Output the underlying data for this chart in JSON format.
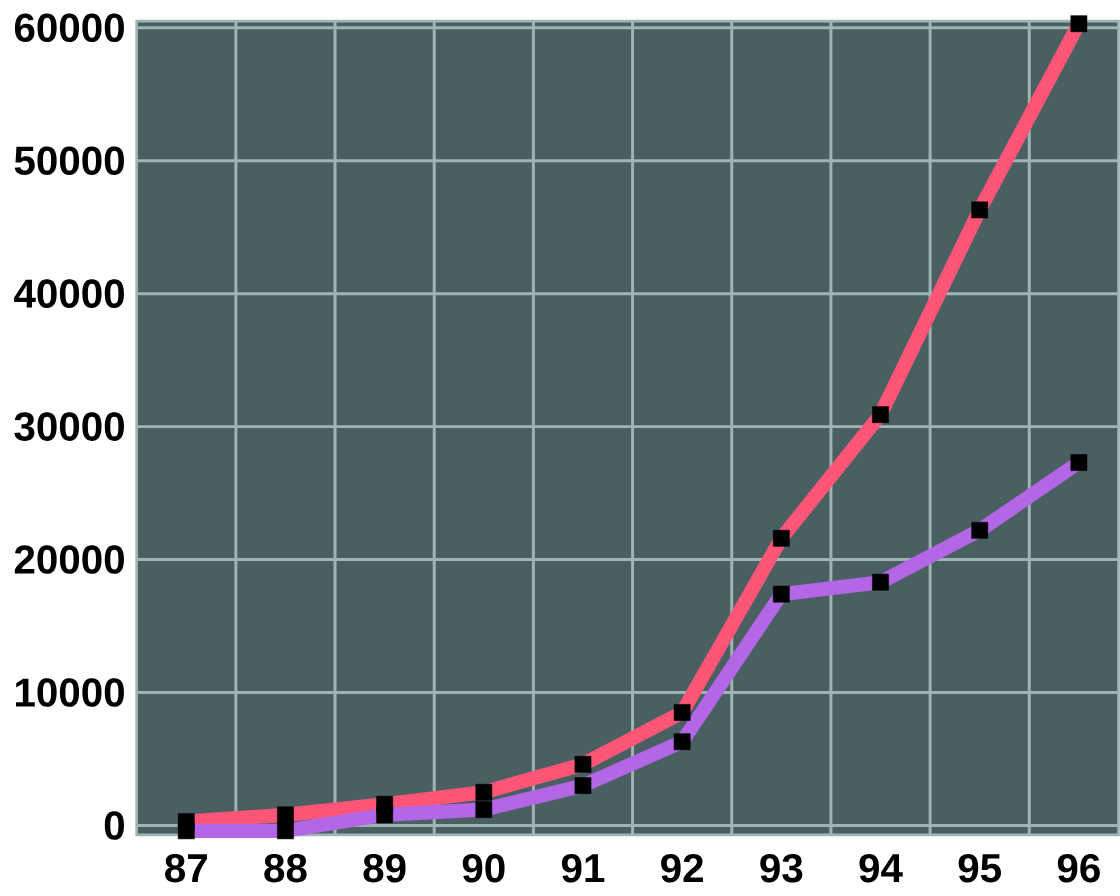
{
  "chart_data": {
    "type": "line",
    "categories": [
      "87",
      "88",
      "89",
      "90",
      "91",
      "92",
      "93",
      "94",
      "95",
      "96"
    ],
    "series": [
      {
        "color": "#ff5577",
        "values": [
          300,
          800,
          1600,
          2500,
          4600,
          8500,
          21600,
          30900,
          46300,
          60300
        ]
      },
      {
        "color": "#b366e6",
        "values": [
          -400,
          -400,
          800,
          1200,
          3000,
          6300,
          17400,
          18300,
          22200,
          27300
        ]
      }
    ],
    "ylim": [
      -700,
      60500
    ],
    "yticks": [
      0,
      10000,
      20000,
      30000,
      40000,
      50000,
      60000
    ],
    "grid": true,
    "marker": "square",
    "line_style": "solid"
  }
}
